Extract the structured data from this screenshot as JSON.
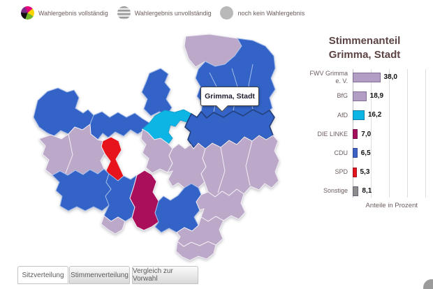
{
  "legend": {
    "items": [
      {
        "icon": "pie-multicolor-icon",
        "label": "Wahlergebnis vollständig"
      },
      {
        "icon": "striped-circle-icon",
        "label": "Wahlergebnis unvollständig"
      },
      {
        "icon": "plain-circle-icon",
        "label": "noch kein Wahlergebnis"
      }
    ]
  },
  "map": {
    "tooltip": "Grimma, Stadt",
    "palette": {
      "blue": "#3363c6",
      "lavender": "#bca9c9",
      "cyan": "#0db5e5",
      "red": "#e8141c",
      "magenta": "#a90f5b"
    }
  },
  "chart_data": {
    "type": "bar",
    "orientation": "horizontal",
    "title": "Stimmenanteil Grimma, Stadt",
    "title_lines": [
      "Stimmenanteil",
      "Grimma, Stadt"
    ],
    "categories": [
      "FWV Grimma e. V.",
      "BfG",
      "AfD",
      "DIE LINKE",
      "CDU",
      "SPD",
      "Sonstige"
    ],
    "values": [
      38.0,
      18.9,
      16.2,
      7.0,
      6.5,
      5.3,
      8.1
    ],
    "value_labels": [
      "38,0",
      "18,9",
      "16,2",
      "7,0",
      "6,5",
      "5,3",
      "8,1"
    ],
    "bar_colors": [
      "#b29dc5",
      "#b29dc5",
      "#0db5e5",
      "#a50f5a",
      "#3d63c5",
      "#e2151c",
      "#8c8c8c"
    ],
    "xlabel": "Anteile in Prozent",
    "xlim": [
      0,
      100
    ],
    "gridlines": [
      25,
      50,
      75,
      100
    ],
    "grid": true,
    "legend_position": "none"
  },
  "tabs": [
    {
      "label": "Sitzverteilung",
      "active": true
    },
    {
      "label": "Stimmenverteilung",
      "active": false
    },
    {
      "label": "Vergleich zur Vorwahl",
      "active": false
    }
  ]
}
